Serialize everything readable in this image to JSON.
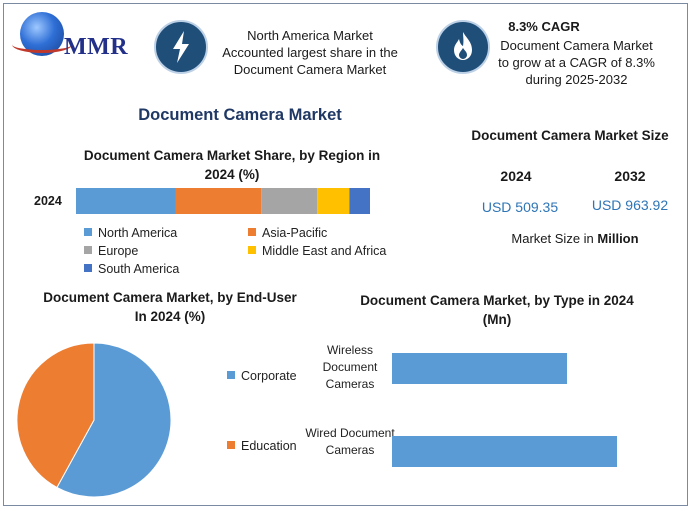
{
  "header": {
    "logo_text": "MMR",
    "highlight_1": "North America Market Accounted largest share in the Document Camera Market",
    "cagr_title": "8.3% CAGR",
    "cagr_text": "Document Camera Market to grow at a CAGR of 8.3% during 2025-2032",
    "icon_1": "lightning-icon",
    "icon_2": "flame-icon"
  },
  "main_title": "Document Camera Market",
  "market_size": {
    "title": "Document Camera Market Size",
    "year_1": "2024",
    "year_2": "2032",
    "value_1": "USD 509.35",
    "value_2": "USD 963.92",
    "unit_prefix": "Market Size in ",
    "unit_bold": "Million"
  },
  "colors": {
    "blue": "#5b9bd5",
    "orange": "#ed7d31",
    "gray": "#a5a5a5",
    "yellow": "#ffc000",
    "dark_blue": "#4472c4",
    "value_blue": "#2e75b6",
    "title_navy": "#1f3864"
  },
  "chart_data": [
    {
      "type": "bar",
      "stacked": true,
      "orientation": "horizontal",
      "title": "Document Camera Market Share, by Region in 2024 (%)",
      "categories": [
        "2024"
      ],
      "series": [
        {
          "name": "North America",
          "values": [
            34
          ],
          "color": "#5b9bd5"
        },
        {
          "name": "Asia-Pacific",
          "values": [
            29
          ],
          "color": "#ed7d31"
        },
        {
          "name": "Europe",
          "values": [
            19
          ],
          "color": "#a5a5a5"
        },
        {
          "name": "Middle East and Africa",
          "values": [
            11
          ],
          "color": "#ffc000"
        },
        {
          "name": "South America",
          "values": [
            7
          ],
          "color": "#4472c4"
        }
      ],
      "legend_position": "bottom"
    },
    {
      "type": "pie",
      "title": "Document Camera Market, by End-User In 2024 (%)",
      "labels": [
        "Corporate",
        "Education"
      ],
      "values": [
        58,
        42
      ],
      "colors": [
        "#5b9bd5",
        "#ed7d31"
      ],
      "legend_position": "right"
    },
    {
      "type": "bar",
      "orientation": "horizontal",
      "title": "Document Camera Market, by Type in 2024 (Mn)",
      "categories": [
        "Wireless Document Cameras",
        "Wired Document Cameras"
      ],
      "values": [
        210,
        270
      ],
      "color": "#5b9bd5",
      "xlim": [
        0,
        300
      ]
    }
  ]
}
